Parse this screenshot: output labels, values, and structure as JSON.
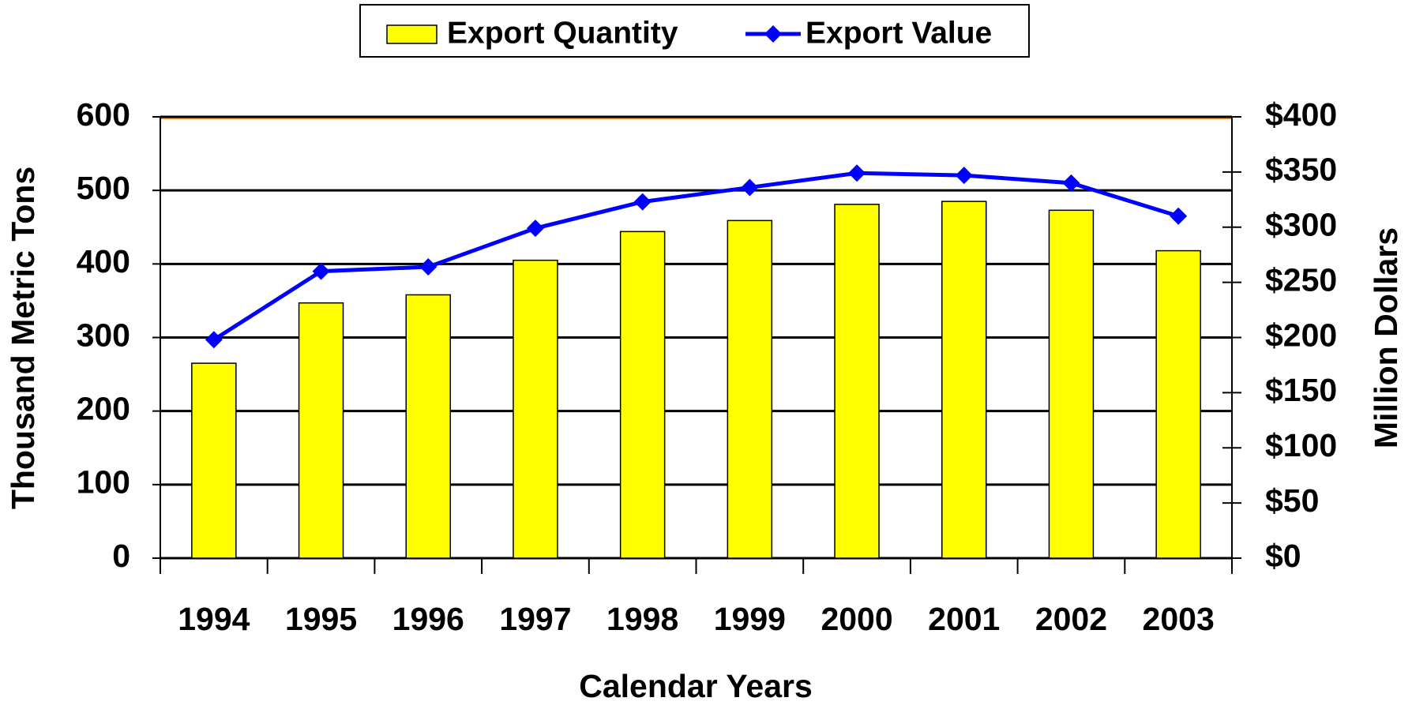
{
  "chart_data": {
    "type": "bar",
    "x_label": "Calendar Years",
    "y_label": "Thousand Metric Tons",
    "y2_label": "Million Dollars",
    "categories": [
      "1994",
      "1995",
      "1996",
      "1997",
      "1998",
      "1999",
      "2000",
      "2001",
      "2002",
      "2003"
    ],
    "series": [
      {
        "name": "Export Quantity",
        "type": "bar",
        "color": "#ffff00",
        "values": [
          265,
          347,
          358,
          405,
          444,
          459,
          481,
          485,
          473,
          418
        ]
      },
      {
        "name": "Export Value",
        "type": "line",
        "axis": "y2",
        "color": "#0000ff",
        "values": [
          198,
          260,
          264,
          299,
          323,
          336,
          349,
          347,
          340,
          310
        ]
      }
    ],
    "ylim": [
      0,
      600
    ],
    "yticks": [
      0,
      100,
      200,
      300,
      400,
      500,
      600
    ],
    "y2lim": [
      0,
      400
    ],
    "y2ticks": [
      {
        "value": 0,
        "label": "$0"
      },
      {
        "value": 50,
        "label": "$50"
      },
      {
        "value": 100,
        "label": "$100"
      },
      {
        "value": 150,
        "label": "$150"
      },
      {
        "value": 200,
        "label": "$200"
      },
      {
        "value": 250,
        "label": "$250"
      },
      {
        "value": 300,
        "label": "$300"
      },
      {
        "value": 350,
        "label": "$350"
      },
      {
        "value": 400,
        "label": "$400"
      }
    ],
    "grid": true,
    "legend": "top"
  }
}
